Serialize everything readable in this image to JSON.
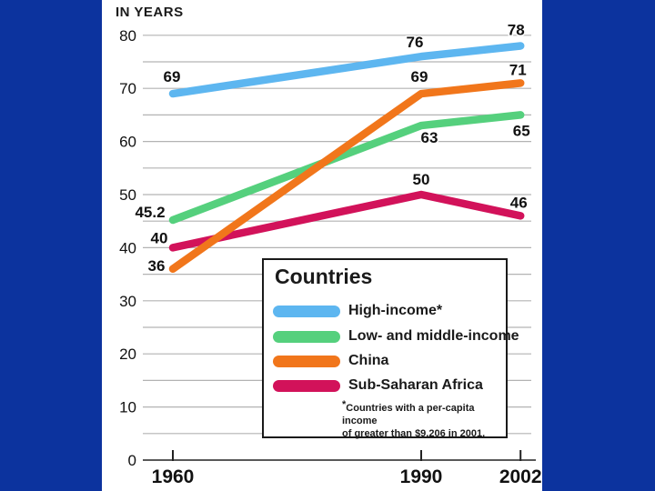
{
  "colors": {
    "background": "#0C339E",
    "panel": "#FFFFFF",
    "grid": "#B3B3B3",
    "axis": "#222222",
    "text": "#1A1A1A"
  },
  "chart_title": "IN YEARS",
  "chart_data": {
    "type": "line",
    "title": "IN YEARS",
    "x": [
      1960,
      1990,
      2002
    ],
    "x_tick_labels": [
      "1960",
      "1990",
      "2002"
    ],
    "ylabel": "IN YEARS",
    "ylim": [
      0,
      80
    ],
    "y_tick_step": 10,
    "grid": true,
    "grid_step": 5,
    "legend_position": "inside-bottom-right",
    "series": [
      {
        "name": "High-income*",
        "color": "#5DB6F0",
        "values": [
          69,
          76,
          78
        ]
      },
      {
        "name": "Low- and middle-income",
        "color": "#55D07D",
        "values": [
          45.2,
          63,
          65
        ]
      },
      {
        "name": "Sub-Saharan Africa",
        "color": "#D2125A",
        "values": [
          40,
          50,
          46
        ]
      },
      {
        "name": "China",
        "color": "#F1761B",
        "values": [
          36,
          69,
          71
        ]
      }
    ],
    "point_labels": [
      [
        "69",
        "76",
        "78"
      ],
      [
        "45.2",
        "63",
        "65"
      ],
      [
        "40",
        "50",
        "46"
      ],
      [
        "36",
        "69",
        "71"
      ]
    ],
    "label_offsets": [
      [
        [
          -1,
          -13
        ],
        [
          -7,
          -10
        ],
        [
          -5,
          -12
        ]
      ],
      [
        [
          -25,
          -3
        ],
        [
          9,
          19
        ],
        [
          1,
          23
        ]
      ],
      [
        [
          -15,
          -5
        ],
        [
          0,
          -11
        ],
        [
          -2,
          -9
        ]
      ],
      [
        [
          -18,
          2
        ],
        [
          -2,
          -13
        ],
        [
          -3,
          -9
        ]
      ]
    ]
  },
  "legend": {
    "title": "Countries",
    "items": [
      {
        "label": "High-income*",
        "color": "#5DB6F0"
      },
      {
        "label": "Low- and middle-income",
        "color": "#55D07D"
      },
      {
        "label": "China",
        "color": "#F1761B"
      },
      {
        "label": "Sub-Saharan Africa",
        "color": "#D2125A"
      }
    ],
    "footnote_mark": "*",
    "footnote_line1": "Countries with a per-capita income",
    "footnote_line2": "of greater than $9,206 in 2001."
  }
}
